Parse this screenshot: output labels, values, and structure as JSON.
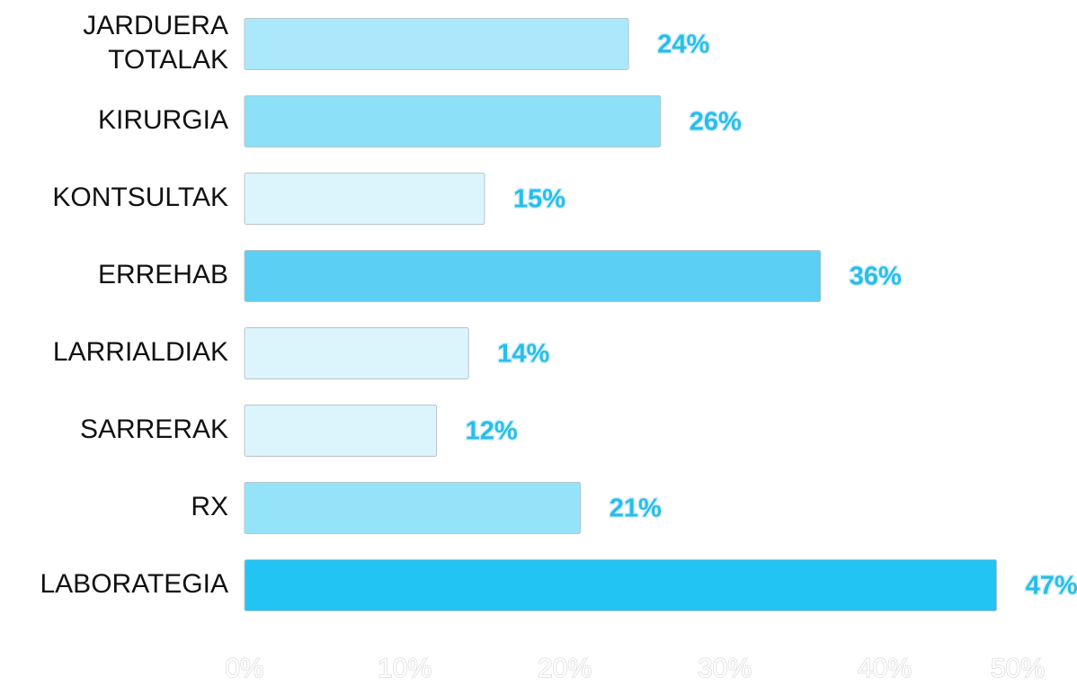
{
  "chart_data": {
    "type": "bar",
    "orientation": "horizontal",
    "title": "",
    "xlabel": "",
    "ylabel": "",
    "categories": [
      [
        "JARDUERA",
        "TOTALAK"
      ],
      [
        "KIRURGIA"
      ],
      [
        "KONTSULTAK"
      ],
      [
        "ERREHAB"
      ],
      [
        "LARRIALDIAK"
      ],
      [
        "SARRERAK"
      ],
      [
        "RX"
      ],
      [
        "LABORATEGIA"
      ]
    ],
    "values": [
      24,
      26,
      15,
      36,
      14,
      12,
      21,
      47
    ],
    "value_labels": [
      "24%",
      "26%",
      "15%",
      "36%",
      "14%",
      "12%",
      "21%",
      "47%"
    ],
    "bar_colors": [
      "#abe8fb",
      "#8ce1f8",
      "#dcf4fc",
      "#5bcff4",
      "#dcf4fc",
      "#dcf4fc",
      "#95e3f9",
      "#22c4f3"
    ],
    "xlim": [
      0,
      50
    ],
    "x_ticks": [
      "0%",
      "10%",
      "20%",
      "30%",
      "40%",
      "50%"
    ],
    "x_tick_values": [
      0,
      10,
      20,
      30,
      40,
      50
    ],
    "grid": false,
    "legend": "none",
    "value_label_color": "#29bde9"
  }
}
